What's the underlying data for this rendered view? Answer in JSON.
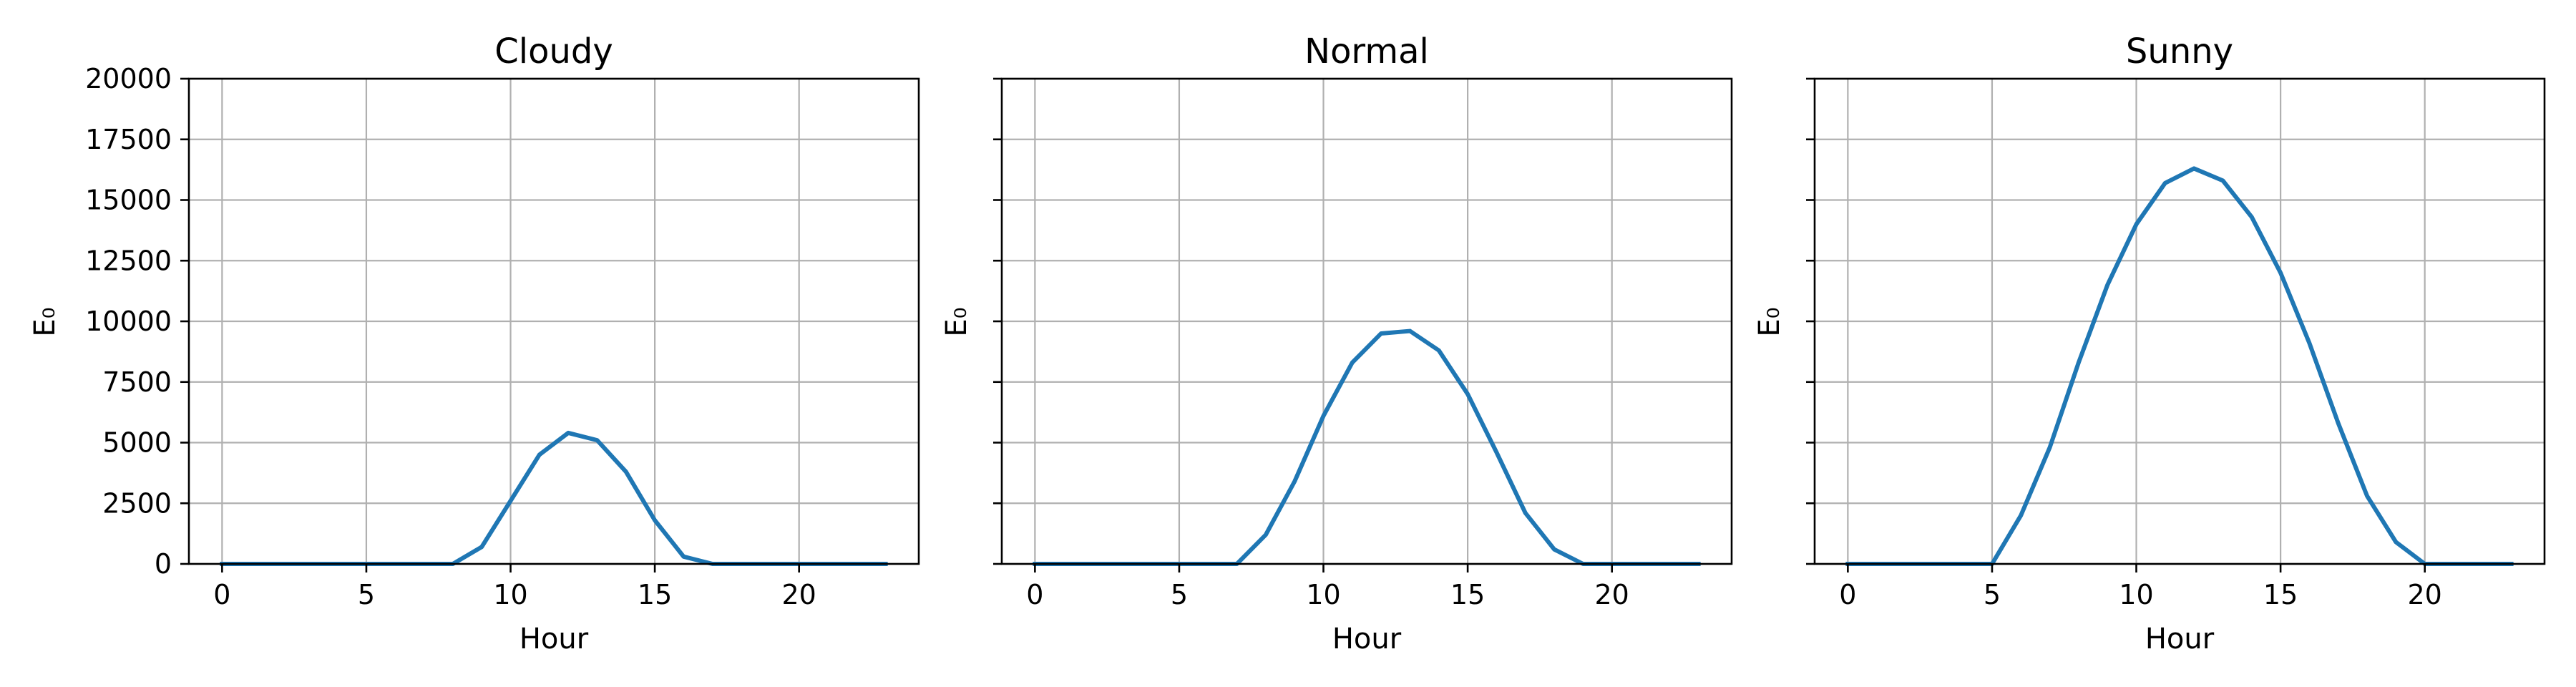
{
  "chart_data": [
    {
      "type": "line",
      "title": "Cloudy",
      "xlabel": "Hour",
      "ylabel": "E₀",
      "xlim": [
        -1.15,
        24.15
      ],
      "ylim": [
        0,
        20000
      ],
      "xticks": [
        0,
        5,
        10,
        15,
        20
      ],
      "yticks": [
        0,
        2500,
        5000,
        7500,
        10000,
        12500,
        15000,
        17500,
        20000
      ],
      "show_yticklabels": true,
      "grid": true,
      "x": [
        0,
        1,
        2,
        3,
        4,
        5,
        6,
        7,
        8,
        9,
        10,
        11,
        12,
        13,
        14,
        15,
        16,
        17,
        18,
        19,
        20,
        21,
        22,
        23
      ],
      "series": [
        {
          "values": [
            0,
            0,
            0,
            0,
            0,
            0,
            0,
            0,
            0,
            700,
            2600,
            4500,
            5400,
            5100,
            3800,
            1800,
            300,
            0,
            0,
            0,
            0,
            0,
            0,
            0
          ]
        }
      ],
      "colors": {
        "line": "#1f77b4"
      }
    },
    {
      "type": "line",
      "title": "Normal",
      "xlabel": "Hour",
      "ylabel": "E₀",
      "xlim": [
        -1.15,
        24.15
      ],
      "ylim": [
        0,
        20000
      ],
      "xticks": [
        0,
        5,
        10,
        15,
        20
      ],
      "yticks": [
        0,
        2500,
        5000,
        7500,
        10000,
        12500,
        15000,
        17500,
        20000
      ],
      "show_yticklabels": false,
      "grid": true,
      "x": [
        0,
        1,
        2,
        3,
        4,
        5,
        6,
        7,
        8,
        9,
        10,
        11,
        12,
        13,
        14,
        15,
        16,
        17,
        18,
        19,
        20,
        21,
        22,
        23
      ],
      "series": [
        {
          "values": [
            0,
            0,
            0,
            0,
            0,
            0,
            0,
            0,
            1200,
            3400,
            6100,
            8300,
            9500,
            9600,
            8800,
            7000,
            4600,
            2100,
            600,
            0,
            0,
            0,
            0,
            0
          ]
        }
      ],
      "colors": {
        "line": "#1f77b4"
      }
    },
    {
      "type": "line",
      "title": "Sunny",
      "xlabel": "Hour",
      "ylabel": "E₀",
      "xlim": [
        -1.15,
        24.15
      ],
      "ylim": [
        0,
        20000
      ],
      "xticks": [
        0,
        5,
        10,
        15,
        20
      ],
      "yticks": [
        0,
        2500,
        5000,
        7500,
        10000,
        12500,
        15000,
        17500,
        20000
      ],
      "show_yticklabels": false,
      "grid": true,
      "x": [
        0,
        1,
        2,
        3,
        4,
        5,
        6,
        7,
        8,
        9,
        10,
        11,
        12,
        13,
        14,
        15,
        16,
        17,
        18,
        19,
        20,
        21,
        22,
        23
      ],
      "series": [
        {
          "values": [
            0,
            0,
            0,
            0,
            0,
            0,
            2000,
            4800,
            8300,
            11500,
            14000,
            15700,
            16300,
            15800,
            14300,
            12000,
            9100,
            5800,
            2800,
            900,
            0,
            0,
            0,
            0
          ]
        }
      ],
      "colors": {
        "line": "#1f77b4"
      }
    }
  ]
}
